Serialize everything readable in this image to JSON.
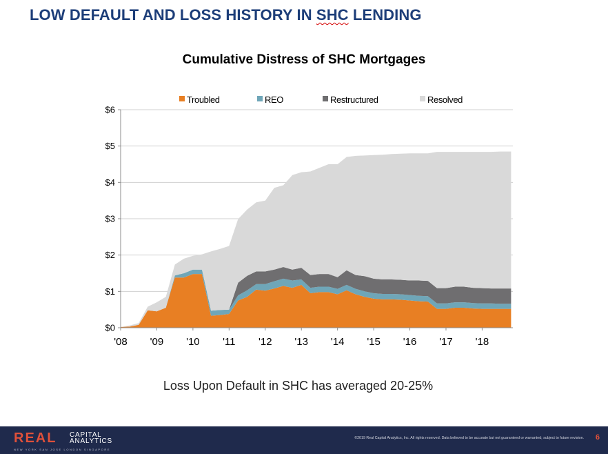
{
  "slide": {
    "title_main": "LOW DEFAULT AND LOSS HISTORY IN ",
    "title_tail": "SHC",
    "title_end": " LENDING",
    "footnote": "Loss Upon Default in SHC has averaged 20-25%",
    "page_number": "6"
  },
  "footer": {
    "logo_brand": "REAL",
    "logo_line1": "CAPITAL",
    "logo_line2": "ANALYTICS",
    "logo_cities": "NEW YORK   SAN JOSE   LONDON   SINGAPORE",
    "copyright": "©2019 Real Capital Analytics, Inc. All rights reserved. Data believed to be accurate but not guaranteed or warranted; subject to future revision."
  },
  "chart_data": {
    "type": "area",
    "stacked": true,
    "title": "Cumulative Distress of SHC Mortgages",
    "xlabel": "",
    "ylabel": "",
    "ylim": [
      0,
      6
    ],
    "yticks": [
      "$0",
      "$1",
      "$2",
      "$3",
      "$4",
      "$5",
      "$6"
    ],
    "xticks": [
      "'08",
      "'09",
      "'10",
      "'11",
      "'12",
      "'13",
      "'14",
      "'15",
      "'16",
      "'17",
      "'18"
    ],
    "xlim": [
      2008,
      2018.85
    ],
    "grid": "horizontal",
    "legend_position": "top",
    "x": [
      2008.0,
      2008.25,
      2008.5,
      2008.75,
      2009.0,
      2009.25,
      2009.5,
      2009.75,
      2010.0,
      2010.25,
      2010.5,
      2010.75,
      2011.0,
      2011.25,
      2011.5,
      2011.75,
      2012.0,
      2012.25,
      2012.5,
      2012.75,
      2013.0,
      2013.25,
      2013.5,
      2013.75,
      2014.0,
      2014.25,
      2014.5,
      2014.75,
      2015.0,
      2015.25,
      2015.5,
      2015.75,
      2016.0,
      2016.25,
      2016.5,
      2016.75,
      2017.0,
      2017.25,
      2017.5,
      2017.75,
      2018.0,
      2018.25,
      2018.5,
      2018.8
    ],
    "series": [
      {
        "name": "Troubled",
        "color": "#e87f23",
        "values": [
          0.02,
          0.03,
          0.08,
          0.48,
          0.45,
          0.55,
          1.38,
          1.38,
          1.48,
          1.48,
          0.33,
          0.35,
          0.38,
          0.75,
          0.85,
          1.05,
          1.02,
          1.08,
          1.15,
          1.1,
          1.18,
          0.95,
          0.98,
          0.98,
          0.92,
          1.03,
          0.92,
          0.85,
          0.8,
          0.78,
          0.78,
          0.77,
          0.75,
          0.73,
          0.72,
          0.52,
          0.52,
          0.55,
          0.55,
          0.53,
          0.52,
          0.52,
          0.52,
          0.52
        ]
      },
      {
        "name": "REO",
        "color": "#6fa6b8",
        "values": [
          0.0,
          0.0,
          0.0,
          0.0,
          0.0,
          0.0,
          0.06,
          0.12,
          0.12,
          0.12,
          0.14,
          0.14,
          0.12,
          0.14,
          0.18,
          0.15,
          0.18,
          0.2,
          0.2,
          0.2,
          0.15,
          0.15,
          0.15,
          0.15,
          0.15,
          0.15,
          0.15,
          0.15,
          0.15,
          0.15,
          0.15,
          0.15,
          0.15,
          0.15,
          0.15,
          0.15,
          0.15,
          0.15,
          0.15,
          0.15,
          0.15,
          0.15,
          0.14,
          0.14
        ]
      },
      {
        "name": "Restructured",
        "color": "#6f6e70",
        "values": [
          0.0,
          0.0,
          0.0,
          0.0,
          0.0,
          0.0,
          0.0,
          0.0,
          0.0,
          0.0,
          0.0,
          0.0,
          0.0,
          0.35,
          0.4,
          0.35,
          0.35,
          0.32,
          0.32,
          0.3,
          0.32,
          0.35,
          0.35,
          0.35,
          0.32,
          0.4,
          0.38,
          0.42,
          0.4,
          0.4,
          0.4,
          0.4,
          0.4,
          0.42,
          0.42,
          0.42,
          0.42,
          0.43,
          0.43,
          0.42,
          0.42,
          0.41,
          0.42,
          0.42
        ]
      },
      {
        "name": "Resolved",
        "color": "#d9d9d9",
        "values": [
          0.0,
          0.03,
          0.05,
          0.1,
          0.25,
          0.3,
          0.3,
          0.4,
          0.38,
          0.42,
          1.63,
          1.68,
          1.75,
          1.75,
          1.82,
          1.9,
          1.95,
          2.25,
          2.25,
          2.6,
          2.63,
          2.85,
          2.92,
          3.02,
          3.11,
          3.12,
          3.28,
          3.32,
          3.4,
          3.43,
          3.45,
          3.47,
          3.5,
          3.5,
          3.51,
          3.75,
          3.75,
          3.71,
          3.71,
          3.74,
          3.75,
          3.76,
          3.77,
          3.77
        ]
      }
    ]
  }
}
